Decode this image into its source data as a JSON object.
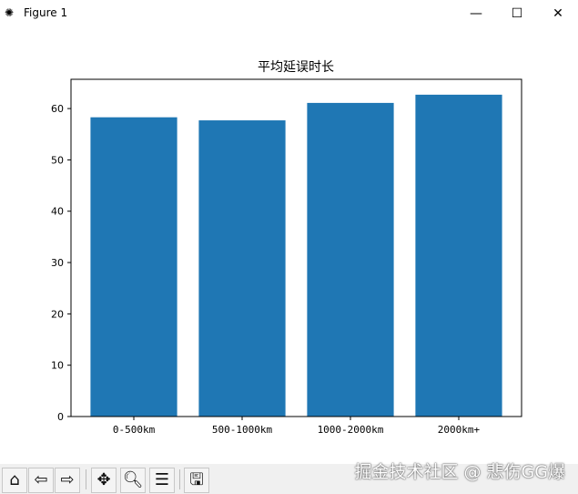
{
  "window": {
    "title": "Figure 1",
    "icons": [
      "matplotlib-icon",
      "minimize-icon",
      "maximize-icon",
      "close-icon"
    ]
  },
  "toolbar": {
    "buttons": [
      "home-icon",
      "back-icon",
      "forward-icon",
      "pan-icon",
      "zoom-icon",
      "configure-subplots-icon",
      "save-icon"
    ]
  },
  "watermark": "掘金技术社区 @ 悲伤GG爆",
  "chart_data": {
    "type": "bar",
    "title": "平均延误时长",
    "xlabel": "",
    "ylabel": "",
    "categories": [
      "0-500km",
      "500-1000km",
      "1000-2000km",
      "2000km+"
    ],
    "values": [
      58.3,
      57.7,
      61.1,
      62.7
    ],
    "ylim": [
      0,
      65.7
    ],
    "yticks": [
      0,
      10,
      20,
      30,
      40,
      50,
      60
    ],
    "grid": false,
    "color": "#1f77b4"
  }
}
